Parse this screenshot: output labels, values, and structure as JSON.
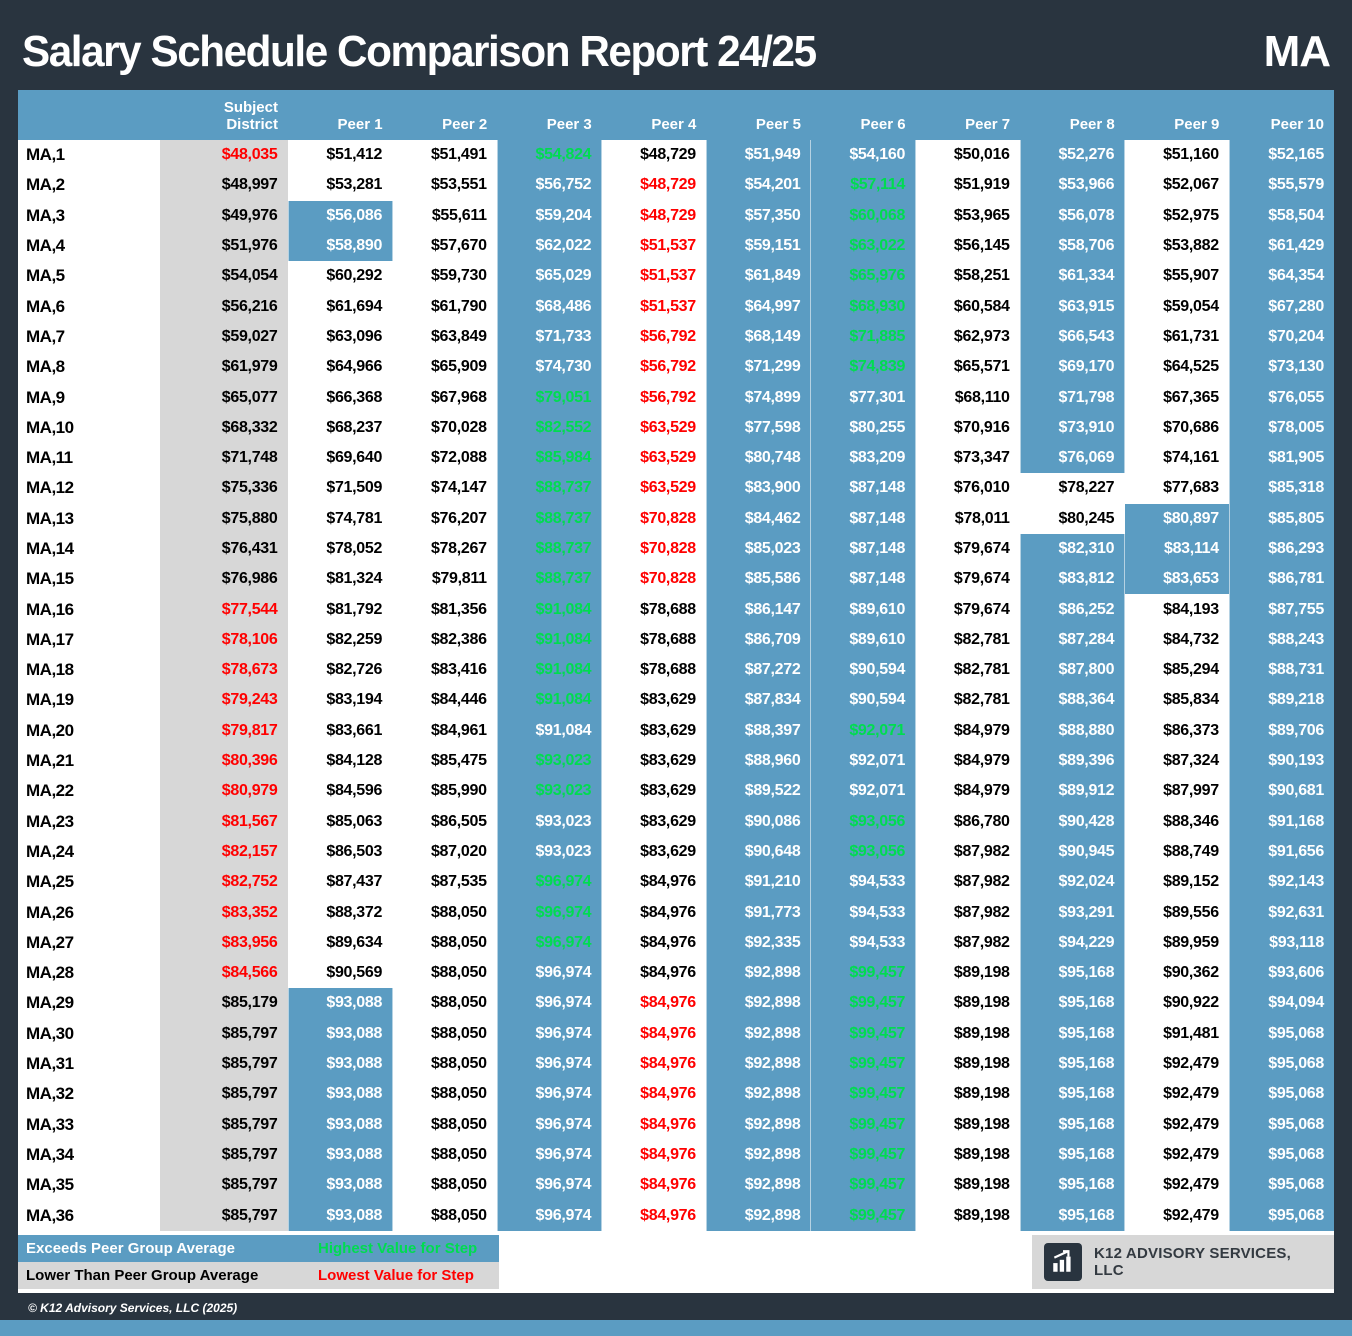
{
  "report": {
    "title": "Salary Schedule Comparison Report 24/25",
    "badge": "MA",
    "copyright": "© K12 Advisory Services, LLC (2025)"
  },
  "table": {
    "columns": [
      "Subject\nDistrict",
      "Peer 1",
      "Peer 2",
      "Peer 3",
      "Peer 4",
      "Peer 5",
      "Peer 6",
      "Peer 7",
      "Peer 8",
      "Peer 9",
      "Peer 10"
    ],
    "rows": [
      {
        "label": "MA,1",
        "values": [
          48035,
          51412,
          51491,
          54824,
          48729,
          51949,
          54160,
          50016,
          52276,
          51160,
          52165
        ]
      },
      {
        "label": "MA,2",
        "values": [
          48997,
          53281,
          53551,
          56752,
          48729,
          54201,
          57114,
          51919,
          53966,
          52067,
          55579
        ]
      },
      {
        "label": "MA,3",
        "values": [
          49976,
          56086,
          55611,
          59204,
          48729,
          57350,
          60068,
          53965,
          56078,
          52975,
          58504
        ]
      },
      {
        "label": "MA,4",
        "values": [
          51976,
          58890,
          57670,
          62022,
          51537,
          59151,
          63022,
          56145,
          58706,
          53882,
          61429
        ]
      },
      {
        "label": "MA,5",
        "values": [
          54054,
          60292,
          59730,
          65029,
          51537,
          61849,
          65976,
          58251,
          61334,
          55907,
          64354
        ]
      },
      {
        "label": "MA,6",
        "values": [
          56216,
          61694,
          61790,
          68486,
          51537,
          64997,
          68930,
          60584,
          63915,
          59054,
          67280
        ]
      },
      {
        "label": "MA,7",
        "values": [
          59027,
          63096,
          63849,
          71733,
          56792,
          68149,
          71885,
          62973,
          66543,
          61731,
          70204
        ]
      },
      {
        "label": "MA,8",
        "values": [
          61979,
          64966,
          65909,
          74730,
          56792,
          71299,
          74839,
          65571,
          69170,
          64525,
          73130
        ]
      },
      {
        "label": "MA,9",
        "values": [
          65077,
          66368,
          67968,
          79051,
          56792,
          74899,
          77301,
          68110,
          71798,
          67365,
          76055
        ]
      },
      {
        "label": "MA,10",
        "values": [
          68332,
          68237,
          70028,
          82552,
          63529,
          77598,
          80255,
          70916,
          73910,
          70686,
          78005
        ]
      },
      {
        "label": "MA,11",
        "values": [
          71748,
          69640,
          72088,
          85984,
          63529,
          80748,
          83209,
          73347,
          76069,
          74161,
          81905
        ]
      },
      {
        "label": "MA,12",
        "values": [
          75336,
          71509,
          74147,
          88737,
          63529,
          83900,
          87148,
          76010,
          78227,
          77683,
          85318
        ]
      },
      {
        "label": "MA,13",
        "values": [
          75880,
          74781,
          76207,
          88737,
          70828,
          84462,
          87148,
          78011,
          80245,
          80897,
          85805
        ]
      },
      {
        "label": "MA,14",
        "values": [
          76431,
          78052,
          78267,
          88737,
          70828,
          85023,
          87148,
          79674,
          82310,
          83114,
          86293
        ]
      },
      {
        "label": "MA,15",
        "values": [
          76986,
          81324,
          79811,
          88737,
          70828,
          85586,
          87148,
          79674,
          83812,
          83653,
          86781
        ]
      },
      {
        "label": "MA,16",
        "values": [
          77544,
          81792,
          81356,
          91084,
          78688,
          86147,
          89610,
          79674,
          86252,
          84193,
          87755
        ]
      },
      {
        "label": "MA,17",
        "values": [
          78106,
          82259,
          82386,
          91084,
          78688,
          86709,
          89610,
          82781,
          87284,
          84732,
          88243
        ]
      },
      {
        "label": "MA,18",
        "values": [
          78673,
          82726,
          83416,
          91084,
          78688,
          87272,
          90594,
          82781,
          87800,
          85294,
          88731
        ]
      },
      {
        "label": "MA,19",
        "values": [
          79243,
          83194,
          84446,
          91084,
          83629,
          87834,
          90594,
          82781,
          88364,
          85834,
          89218
        ]
      },
      {
        "label": "MA,20",
        "values": [
          79817,
          83661,
          84961,
          91084,
          83629,
          88397,
          92071,
          84979,
          88880,
          86373,
          89706
        ]
      },
      {
        "label": "MA,21",
        "values": [
          80396,
          84128,
          85475,
          93023,
          83629,
          88960,
          92071,
          84979,
          89396,
          87324,
          90193
        ]
      },
      {
        "label": "MA,22",
        "values": [
          80979,
          84596,
          85990,
          93023,
          83629,
          89522,
          92071,
          84979,
          89912,
          87997,
          90681
        ]
      },
      {
        "label": "MA,23",
        "values": [
          81567,
          85063,
          86505,
          93023,
          83629,
          90086,
          93056,
          86780,
          90428,
          88346,
          91168
        ]
      },
      {
        "label": "MA,24",
        "values": [
          82157,
          86503,
          87020,
          93023,
          83629,
          90648,
          93056,
          87982,
          90945,
          88749,
          91656
        ]
      },
      {
        "label": "MA,25",
        "values": [
          82752,
          87437,
          87535,
          96974,
          84976,
          91210,
          94533,
          87982,
          92024,
          89152,
          92143
        ]
      },
      {
        "label": "MA,26",
        "values": [
          83352,
          88372,
          88050,
          96974,
          84976,
          91773,
          94533,
          87982,
          93291,
          89556,
          92631
        ]
      },
      {
        "label": "MA,27",
        "values": [
          83956,
          89634,
          88050,
          96974,
          84976,
          92335,
          94533,
          87982,
          94229,
          89959,
          93118
        ]
      },
      {
        "label": "MA,28",
        "values": [
          84566,
          90569,
          88050,
          96974,
          84976,
          92898,
          99457,
          89198,
          95168,
          90362,
          93606
        ]
      },
      {
        "label": "MA,29",
        "values": [
          85179,
          93088,
          88050,
          96974,
          84976,
          92898,
          99457,
          89198,
          95168,
          90922,
          94094
        ]
      },
      {
        "label": "MA,30",
        "values": [
          85797,
          93088,
          88050,
          96974,
          84976,
          92898,
          99457,
          89198,
          95168,
          91481,
          95068
        ]
      },
      {
        "label": "MA,31",
        "values": [
          85797,
          93088,
          88050,
          96974,
          84976,
          92898,
          99457,
          89198,
          95168,
          92479,
          95068
        ]
      },
      {
        "label": "MA,32",
        "values": [
          85797,
          93088,
          88050,
          96974,
          84976,
          92898,
          99457,
          89198,
          95168,
          92479,
          95068
        ]
      },
      {
        "label": "MA,33",
        "values": [
          85797,
          93088,
          88050,
          96974,
          84976,
          92898,
          99457,
          89198,
          95168,
          92479,
          95068
        ]
      },
      {
        "label": "MA,34",
        "values": [
          85797,
          93088,
          88050,
          96974,
          84976,
          92898,
          99457,
          89198,
          95168,
          92479,
          95068
        ]
      },
      {
        "label": "MA,35",
        "values": [
          85797,
          93088,
          88050,
          96974,
          84976,
          92898,
          99457,
          89198,
          95168,
          92479,
          95068
        ]
      },
      {
        "label": "MA,36",
        "values": [
          85797,
          93088,
          88050,
          96974,
          84976,
          92898,
          99457,
          89198,
          95168,
          92479,
          95068
        ]
      }
    ]
  },
  "legend": {
    "exceeds": "Exceeds Peer Group Average",
    "highest": "Highest Value for Step",
    "lower": "Lower Than Peer Group Average",
    "lowest": "Lowest Value for Step"
  },
  "branding": {
    "name": "K12 ADVISORY SERVICES, LLC",
    "icon": "bar-chart-growth-icon"
  },
  "colors": {
    "frame_dark": "#29343F",
    "accent_blue": "#5B9CC2",
    "light_gray": "#D7D7D7",
    "highest_green": "#00DC50",
    "lowest_red": "#FF0000"
  }
}
